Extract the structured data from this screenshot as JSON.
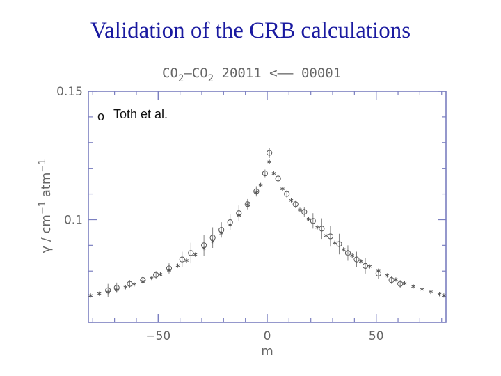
{
  "slide": {
    "title": "Validation of the CRB calculations"
  },
  "chart_data": {
    "type": "scatter",
    "title_parts": {
      "a": "CO",
      "a_sub": "2",
      "dash": "–",
      "b": "CO",
      "b_sub": "2",
      "rest": " 20011 <–– 00001"
    },
    "xlabel": "m",
    "ylabel_parts": {
      "gamma": "γ",
      "mid": " / cm",
      "sup1": "−1",
      "atm": " atm",
      "sup2": "−1"
    },
    "xlim": [
      -82,
      82
    ],
    "ylim": [
      0.06,
      0.15
    ],
    "x_ticks": [
      {
        "value": -50,
        "label": "−50"
      },
      {
        "value": 0,
        "label": "0"
      },
      {
        "value": 50,
        "label": "50"
      }
    ],
    "y_ticks": [
      {
        "value": 0.15,
        "label": "0.15"
      },
      {
        "value": 0.1,
        "label": "0.1"
      }
    ],
    "legend": {
      "position": "top-left",
      "marker": "o",
      "label": "Toth et al."
    },
    "grid": false,
    "series": [
      {
        "name": "Toth et al.",
        "marker": "circle",
        "points": [
          {
            "x": -73,
            "y": 0.0725,
            "err": 0.0025
          },
          {
            "x": -69,
            "y": 0.0735,
            "err": 0.002
          },
          {
            "x": -63,
            "y": 0.075,
            "err": 0.0015
          },
          {
            "x": -57,
            "y": 0.0765,
            "err": 0.0015
          },
          {
            "x": -51,
            "y": 0.0785,
            "err": 0.0015
          },
          {
            "x": -45,
            "y": 0.081,
            "err": 0.002
          },
          {
            "x": -39,
            "y": 0.0845,
            "err": 0.003
          },
          {
            "x": -35,
            "y": 0.087,
            "err": 0.004
          },
          {
            "x": -29,
            "y": 0.09,
            "err": 0.004
          },
          {
            "x": -25,
            "y": 0.093,
            "err": 0.004
          },
          {
            "x": -21,
            "y": 0.096,
            "err": 0.003
          },
          {
            "x": -17,
            "y": 0.099,
            "err": 0.003
          },
          {
            "x": -13,
            "y": 0.1025,
            "err": 0.003
          },
          {
            "x": -9,
            "y": 0.106,
            "err": 0.002
          },
          {
            "x": -5,
            "y": 0.111,
            "err": 0.002
          },
          {
            "x": -1,
            "y": 0.118,
            "err": 0.0015
          },
          {
            "x": 1,
            "y": 0.126,
            "err": 0.002
          },
          {
            "x": 5,
            "y": 0.116,
            "err": 0.0015
          },
          {
            "x": 9,
            "y": 0.11,
            "err": 0.0015
          },
          {
            "x": 13,
            "y": 0.106,
            "err": 0.0015
          },
          {
            "x": 17,
            "y": 0.103,
            "err": 0.002
          },
          {
            "x": 21,
            "y": 0.0995,
            "err": 0.003
          },
          {
            "x": 25,
            "y": 0.0965,
            "err": 0.004
          },
          {
            "x": 29,
            "y": 0.0935,
            "err": 0.004
          },
          {
            "x": 33,
            "y": 0.0905,
            "err": 0.004
          },
          {
            "x": 37,
            "y": 0.087,
            "err": 0.003
          },
          {
            "x": 41,
            "y": 0.0845,
            "err": 0.003
          },
          {
            "x": 45,
            "y": 0.082,
            "err": 0.003
          },
          {
            "x": 51,
            "y": 0.079,
            "err": 0.002
          },
          {
            "x": 57,
            "y": 0.0765,
            "err": 0.0015
          },
          {
            "x": 61,
            "y": 0.075,
            "err": 0.0015
          }
        ]
      },
      {
        "name": "",
        "marker": "star",
        "points": [
          {
            "x": -81,
            "y": 0.0705
          },
          {
            "x": -77,
            "y": 0.0712
          },
          {
            "x": -73,
            "y": 0.0718
          },
          {
            "x": -69,
            "y": 0.0727
          },
          {
            "x": -65,
            "y": 0.0737
          },
          {
            "x": -61,
            "y": 0.0748
          },
          {
            "x": -57,
            "y": 0.076
          },
          {
            "x": -53,
            "y": 0.0773
          },
          {
            "x": -49,
            "y": 0.0787
          },
          {
            "x": -45,
            "y": 0.0803
          },
          {
            "x": -41,
            "y": 0.0821
          },
          {
            "x": -37,
            "y": 0.0841
          },
          {
            "x": -33,
            "y": 0.0864
          },
          {
            "x": -29,
            "y": 0.0889
          },
          {
            "x": -25,
            "y": 0.0916
          },
          {
            "x": -21,
            "y": 0.0947
          },
          {
            "x": -17,
            "y": 0.098
          },
          {
            "x": -13,
            "y": 0.1017
          },
          {
            "x": -9,
            "y": 0.1058
          },
          {
            "x": -5,
            "y": 0.1105
          },
          {
            "x": -3,
            "y": 0.1135
          },
          {
            "x": 1,
            "y": 0.1225
          },
          {
            "x": 3,
            "y": 0.118
          },
          {
            "x": 7,
            "y": 0.112
          },
          {
            "x": 11,
            "y": 0.1075
          },
          {
            "x": 15,
            "y": 0.1038
          },
          {
            "x": 19,
            "y": 0.1002
          },
          {
            "x": 23,
            "y": 0.097
          },
          {
            "x": 27,
            "y": 0.0938
          },
          {
            "x": 31,
            "y": 0.091
          },
          {
            "x": 35,
            "y": 0.0884
          },
          {
            "x": 39,
            "y": 0.086
          },
          {
            "x": 43,
            "y": 0.0838
          },
          {
            "x": 47,
            "y": 0.0818
          },
          {
            "x": 51,
            "y": 0.08
          },
          {
            "x": 55,
            "y": 0.0783
          },
          {
            "x": 59,
            "y": 0.0767
          },
          {
            "x": 63,
            "y": 0.0752
          },
          {
            "x": 67,
            "y": 0.074
          },
          {
            "x": 71,
            "y": 0.0729
          },
          {
            "x": 75,
            "y": 0.0719
          },
          {
            "x": 79,
            "y": 0.071
          },
          {
            "x": 81,
            "y": 0.0705
          }
        ]
      }
    ]
  }
}
